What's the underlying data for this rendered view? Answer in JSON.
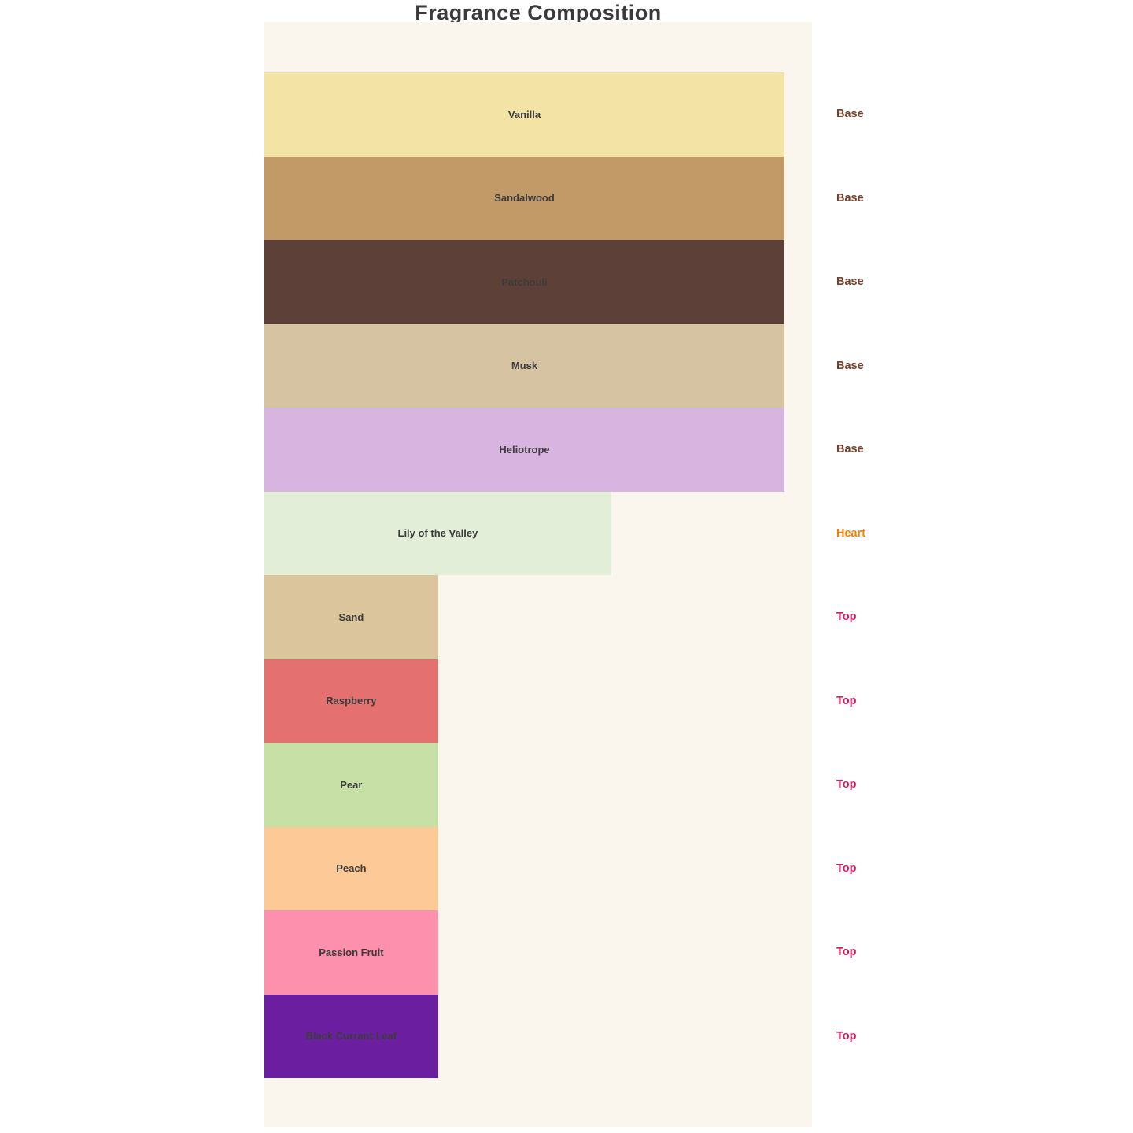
{
  "page": {
    "title": "Fragrance Composition"
  },
  "colors": {
    "page_bg": "#ffffff",
    "panel_bg": "#faf6ee",
    "title_text": "#3a3a3a",
    "bar_label_text": "#3c3c3c",
    "category_base": "#74412d",
    "category_heart": "#ef8200",
    "category_top": "#d31c5f"
  },
  "chart_data": {
    "type": "bar",
    "orientation": "horizontal",
    "title": "Fragrance Composition",
    "xlim": [
      0,
      3
    ],
    "grid": false,
    "legend": "none",
    "categories": [
      "Vanilla",
      "Sandalwood",
      "Patchouli",
      "Musk",
      "Heliotrope",
      "Lily of the Valley",
      "Sand",
      "Raspberry",
      "Pear",
      "Peach",
      "Passion Fruit",
      "Black Currant Leaf"
    ],
    "values": [
      3,
      3,
      3,
      3,
      3,
      2,
      1,
      1,
      1,
      1,
      1,
      1
    ],
    "notes": [
      {
        "name": "Vanilla",
        "category": "Base",
        "value": 3,
        "width_pct": 100,
        "color": "#f3e4a6"
      },
      {
        "name": "Sandalwood",
        "category": "Base",
        "value": 3,
        "width_pct": 100,
        "color": "#c19a67"
      },
      {
        "name": "Patchouli",
        "category": "Base",
        "value": 3,
        "width_pct": 100,
        "color": "#5d4037"
      },
      {
        "name": "Musk",
        "category": "Base",
        "value": 3,
        "width_pct": 100,
        "color": "#d5c3a1"
      },
      {
        "name": "Heliotrope",
        "category": "Base",
        "value": 3,
        "width_pct": 100,
        "color": "#d8b5e0"
      },
      {
        "name": "Lily of the Valley",
        "category": "Heart",
        "value": 2,
        "width_pct": 66.7,
        "color": "#e3eed8"
      },
      {
        "name": "Sand",
        "category": "Top",
        "value": 1,
        "width_pct": 33.4,
        "color": "#dbc59d"
      },
      {
        "name": "Raspberry",
        "category": "Top",
        "value": 1,
        "width_pct": 33.4,
        "color": "#e57070"
      },
      {
        "name": "Pear",
        "category": "Top",
        "value": 1,
        "width_pct": 33.4,
        "color": "#c7e0a5"
      },
      {
        "name": "Peach",
        "category": "Top",
        "value": 1,
        "width_pct": 33.4,
        "color": "#fdca97"
      },
      {
        "name": "Passion Fruit",
        "category": "Top",
        "value": 1,
        "width_pct": 33.4,
        "color": "#fc90ad"
      },
      {
        "name": "Black Currant Leaf",
        "category": "Top",
        "value": 1,
        "width_pct": 33.4,
        "color": "#6b1fa0"
      }
    ]
  }
}
